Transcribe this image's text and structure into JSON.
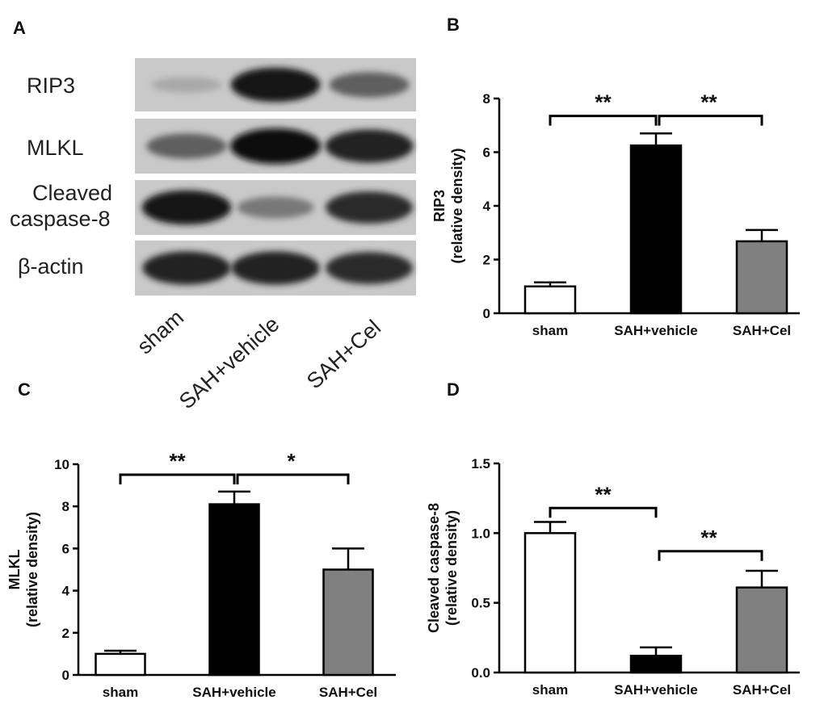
{
  "panels": {
    "a": "A",
    "b": "B",
    "c": "C",
    "d": "D"
  },
  "blot": {
    "rows": [
      "RIP3",
      "MLKL",
      "Cleaved",
      "caspase-8",
      "β-actin"
    ],
    "lanes": [
      "sham",
      "SAH+vehicle",
      "SAH+Cel"
    ],
    "band_intensity": [
      [
        0.12,
        0.95,
        0.55
      ],
      [
        0.55,
        1.0,
        0.9
      ],
      [
        0.95,
        0.4,
        0.85
      ],
      [
        0.9,
        0.9,
        0.85
      ]
    ]
  },
  "chart_data": [
    {
      "type": "bar",
      "panel": "B",
      "categories": [
        "sham",
        "SAH+vehicle",
        "SAH+Cel"
      ],
      "values": [
        1.0,
        6.25,
        2.68
      ],
      "errors": [
        0.15,
        0.45,
        0.42
      ],
      "fills": [
        "#ffffff",
        "#000000",
        "#808080"
      ],
      "ylabel_line1": "RIP3",
      "ylabel_line2": "(relative density)",
      "ylim": [
        0,
        8
      ],
      "yticks": [
        0,
        2,
        4,
        6,
        8
      ],
      "ytick_labels": [
        "0",
        "2",
        "4",
        "6",
        "8"
      ],
      "significance": [
        {
          "from": 0,
          "to": 1,
          "label": "**",
          "y": 7.35
        },
        {
          "from": 1,
          "to": 2,
          "label": "**",
          "y": 7.35
        }
      ]
    },
    {
      "type": "bar",
      "panel": "C",
      "categories": [
        "sham",
        "SAH+vehicle",
        "SAH+Cel"
      ],
      "values": [
        1.0,
        8.1,
        5.0
      ],
      "errors": [
        0.15,
        0.6,
        1.0
      ],
      "fills": [
        "#ffffff",
        "#000000",
        "#808080"
      ],
      "ylabel_line1": "MLKL",
      "ylabel_line2": "(relative density)",
      "ylim": [
        0,
        10
      ],
      "yticks": [
        0,
        2,
        4,
        6,
        8,
        10
      ],
      "ytick_labels": [
        "0",
        "2",
        "4",
        "6",
        "8",
        "10"
      ],
      "significance": [
        {
          "from": 0,
          "to": 1,
          "label": "**",
          "y": 9.5
        },
        {
          "from": 1,
          "to": 2,
          "label": "*",
          "y": 9.5
        }
      ]
    },
    {
      "type": "bar",
      "panel": "D",
      "categories": [
        "sham",
        "SAH+vehicle",
        "SAH+Cel"
      ],
      "values": [
        1.0,
        0.12,
        0.61
      ],
      "errors": [
        0.08,
        0.06,
        0.12
      ],
      "fills": [
        "#ffffff",
        "#000000",
        "#808080"
      ],
      "ylabel_line1": "Cleaved caspase-8",
      "ylabel_line2": "(relative density)",
      "ylim": [
        0,
        1.5
      ],
      "yticks": [
        0,
        0.5,
        1.0,
        1.5
      ],
      "ytick_labels": [
        "0.0",
        "0.5",
        "1.0",
        "1.5"
      ],
      "significance": [
        {
          "from": 0,
          "to": 1,
          "label": "**",
          "y": 1.18
        },
        {
          "from": 1,
          "to": 2,
          "label": "**",
          "y": 0.87
        }
      ]
    }
  ]
}
